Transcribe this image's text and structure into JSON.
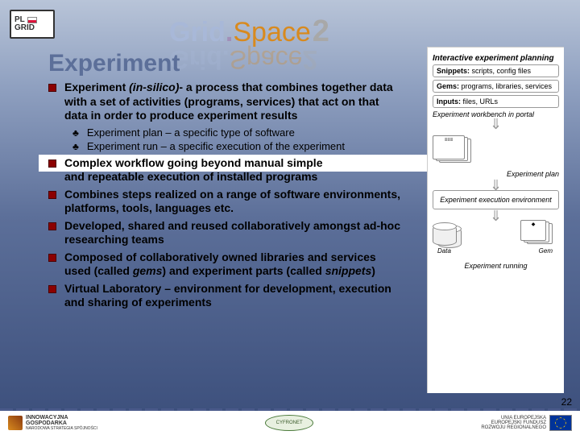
{
  "badge": {
    "line1": "PL",
    "line2": "GRID"
  },
  "logo": {
    "part1": "Grid",
    "dot": ".",
    "part2": "Space",
    "part3": "2"
  },
  "title": "Experiment",
  "bullets": [
    {
      "html": "Experiment <span class='ital'>(in-silico)</span>- a process that combines together data with a set of activities (programs, services) that act on that data in order to produce experiment results"
    },
    {
      "text": "Complex workflow going beyond manual simple and repeatable execution of installed programs",
      "whiteband": true,
      "secondline": "and repeatable execution of installed programs"
    },
    {
      "text": "Combines steps realized on a range of software environments, platforms, tools, languages etc."
    },
    {
      "text": "Developed, shared and reused collaboratively amongst ad-hoc researching teams"
    },
    {
      "html": "Composed of collaboratively owned libraries and services used (called <span class='ital'>gems</span>) and experiment parts (called <span class='ital'>snippets</span>)"
    },
    {
      "text": "Virtual Laboratory – environment for development, execution and sharing of experiments"
    }
  ],
  "subbullets": [
    "Experiment plan – a specific type of software",
    "Experiment run – a specific execution of the experiment"
  ],
  "diagram": {
    "panel1_label": "Interactive experiment planning",
    "box1": {
      "bold": "Snippets:",
      "rest": " scripts, config files"
    },
    "box2": {
      "bold": "Gems:",
      "rest": " programs, libraries, services"
    },
    "box3": {
      "bold": "Inputs:",
      "rest": " files, URLs"
    },
    "nobox": "Experiment workbench in portal",
    "panel3_plan": "Experiment plan",
    "panel3_env": "Experiment execution environment",
    "data": "Data",
    "gem": "Gem",
    "running": "Experiment running"
  },
  "page_number": "22",
  "footer": {
    "ig1": "INNOWACYJNA",
    "ig2": "GOSPODARKA",
    "ig3": "NARODOWA STRATEGIA SPÓJNOŚCI",
    "cyfronet": "CYFRONET",
    "eu1": "UNIA EUROPEJSKA",
    "eu2": "EUROPEJSKI FUNDUSZ",
    "eu3": "ROZWOJU REGIONALNEGO"
  },
  "colors": {
    "bullet_square": "#8b0000",
    "title_color": "#5c6f99"
  }
}
